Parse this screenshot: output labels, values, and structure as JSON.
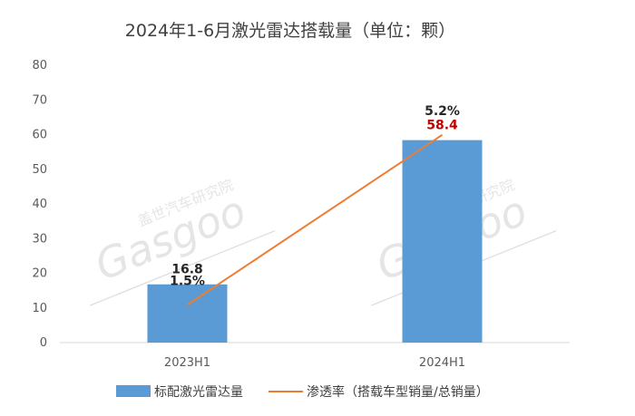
{
  "title": "2024年1-6月激光雷达搭载量（单位：颗）",
  "watermark": {
    "brand": "Gasgoo",
    "cn_name": "盖世汽车研究院"
  },
  "colors": {
    "bar": "#5b9bd5",
    "line": "#ed7d31",
    "highlight_label": "#c00000",
    "default_label": "#262626"
  },
  "chart_data": {
    "type": "bar",
    "categories": [
      "2023H1",
      "2024H1"
    ],
    "ylim": [
      0,
      80
    ],
    "yticks": [
      0,
      10,
      20,
      30,
      40,
      50,
      60,
      70,
      80
    ],
    "grid": false,
    "legend_position": "bottom",
    "series": [
      {
        "name": "标配激光雷达量",
        "kind": "bar",
        "values": [
          16.8,
          58.4
        ],
        "labels": [
          "16.8",
          "58.4"
        ]
      },
      {
        "name": "渗透率（搭载车型销量/总销量）",
        "kind": "line",
        "axis": "secondary",
        "values": [
          1.5,
          5.2
        ],
        "labels": [
          "1.5%",
          "5.2%"
        ]
      }
    ]
  }
}
